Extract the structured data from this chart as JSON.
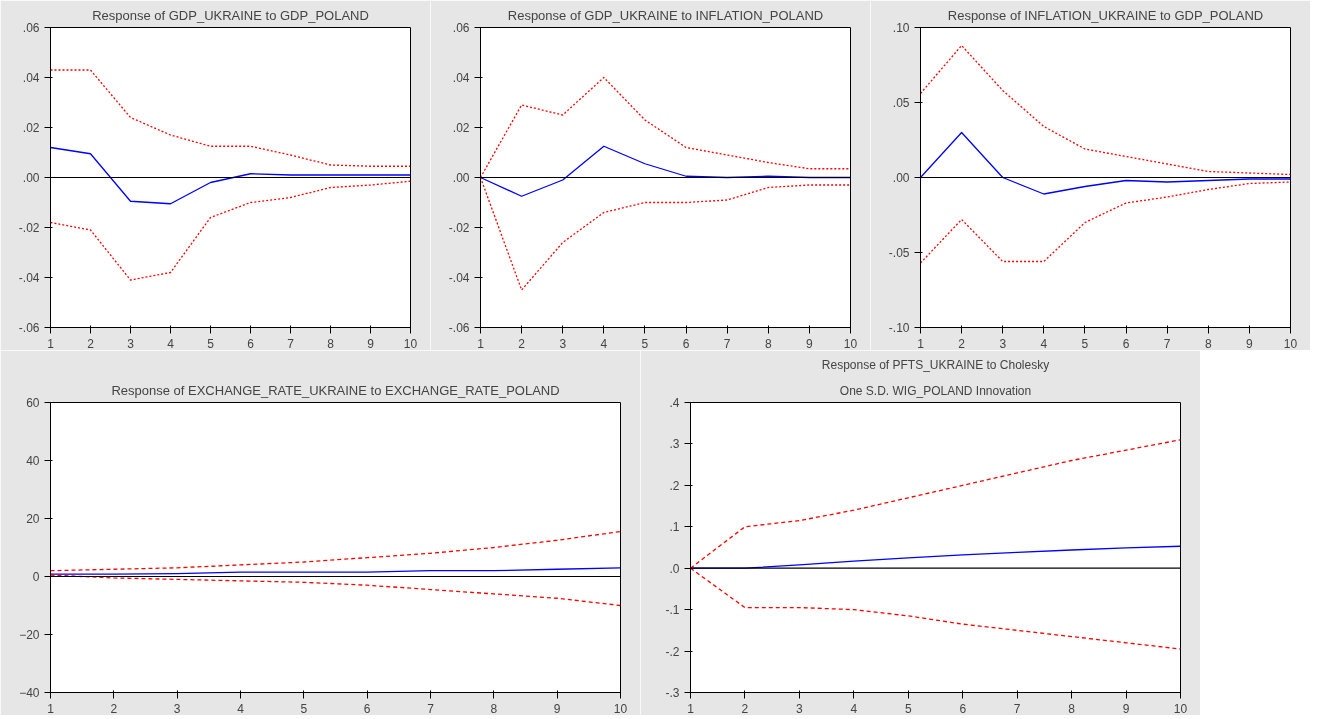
{
  "chart_data": [
    {
      "type": "line",
      "title": "Response of GDP_UKRAINE to GDP_POLAND",
      "x": [
        1,
        2,
        3,
        4,
        5,
        6,
        7,
        8,
        9,
        10
      ],
      "xlim": [
        1,
        10
      ],
      "xticks": [
        1,
        2,
        3,
        4,
        5,
        6,
        7,
        8,
        9,
        10
      ],
      "ylim": [
        -0.06,
        0.06
      ],
      "yticks": [
        {
          "value": -0.06,
          "label": "-.06"
        },
        {
          "value": -0.04,
          "label": "-.04"
        },
        {
          "value": -0.02,
          "label": "-.02"
        },
        {
          "value": 0,
          "label": ".00"
        },
        {
          "value": 0.02,
          "label": ".02"
        },
        {
          "value": 0.04,
          "label": ".04"
        },
        {
          "value": 0.06,
          "label": ".06"
        }
      ],
      "grid": false,
      "ref_lines": [
        {
          "axis": "y",
          "value": 0,
          "color": "#000000"
        }
      ],
      "series": [
        {
          "color": "#0000ff",
          "line_style": "solid",
          "values": [
            0.012,
            0.0095,
            -0.0095,
            -0.0105,
            -0.002,
            0.0015,
            0.001,
            0.001,
            0.001,
            0.001
          ]
        },
        {
          "color": "#ff0000",
          "line_style": "dotted",
          "values": [
            0.043,
            0.043,
            0.024,
            0.017,
            0.0125,
            0.0125,
            0.009,
            0.005,
            0.0045,
            0.0045
          ]
        },
        {
          "color": "#ff0000",
          "line_style": "dotted",
          "values": [
            -0.018,
            -0.021,
            -0.041,
            -0.038,
            -0.016,
            -0.01,
            -0.008,
            -0.004,
            -0.003,
            -0.0015
          ]
        }
      ]
    },
    {
      "type": "line",
      "title": "Response of GDP_UKRAINE to INFLATION_POLAND",
      "x": [
        1,
        2,
        3,
        4,
        5,
        6,
        7,
        8,
        9,
        10
      ],
      "xlim": [
        1,
        10
      ],
      "xticks": [
        1,
        2,
        3,
        4,
        5,
        6,
        7,
        8,
        9,
        10
      ],
      "ylim": [
        -0.06,
        0.06
      ],
      "yticks": [
        {
          "value": -0.06,
          "label": "-.06"
        },
        {
          "value": -0.04,
          "label": "-.04"
        },
        {
          "value": -0.02,
          "label": "-.02"
        },
        {
          "value": 0,
          "label": ".00"
        },
        {
          "value": 0.02,
          "label": ".02"
        },
        {
          "value": 0.04,
          "label": ".04"
        },
        {
          "value": 0.06,
          "label": ".06"
        }
      ],
      "grid": false,
      "ref_lines": [
        {
          "axis": "y",
          "value": 0,
          "color": "#000000"
        }
      ],
      "series": [
        {
          "color": "#0000ff",
          "line_style": "solid",
          "values": [
            0,
            -0.0075,
            -0.001,
            0.0125,
            0.0055,
            0.0005,
            0,
            0.0005,
            0,
            0
          ]
        },
        {
          "color": "#ff0000",
          "line_style": "dotted",
          "values": [
            0,
            0.029,
            0.025,
            0.04,
            0.023,
            0.012,
            0.009,
            0.006,
            0.0035,
            0.0035
          ]
        },
        {
          "color": "#ff0000",
          "line_style": "dotted",
          "values": [
            0,
            -0.045,
            -0.026,
            -0.014,
            -0.01,
            -0.01,
            -0.009,
            -0.004,
            -0.003,
            -0.003
          ]
        }
      ]
    },
    {
      "type": "line",
      "title": "Response of INFLATION_UKRAINE to GDP_POLAND",
      "x": [
        1,
        2,
        3,
        4,
        5,
        6,
        7,
        8,
        9,
        10
      ],
      "xlim": [
        1,
        10
      ],
      "xticks": [
        1,
        2,
        3,
        4,
        5,
        6,
        7,
        8,
        9,
        10
      ],
      "ylim": [
        -0.1,
        0.1
      ],
      "yticks": [
        {
          "value": -0.1,
          "label": "-.10"
        },
        {
          "value": -0.05,
          "label": "-.05"
        },
        {
          "value": 0,
          "label": ".00"
        },
        {
          "value": 0.05,
          "label": ".05"
        },
        {
          "value": 0.1,
          "label": ".10"
        }
      ],
      "grid": false,
      "ref_lines": [
        {
          "axis": "y",
          "value": 0,
          "color": "#000000"
        }
      ],
      "series": [
        {
          "color": "#0000ff",
          "line_style": "solid",
          "values": [
            0,
            0.03,
            0,
            -0.011,
            -0.006,
            -0.002,
            -0.003,
            -0.002,
            -0.001,
            -0.001
          ]
        },
        {
          "color": "#ff0000",
          "line_style": "dotted",
          "values": [
            0.056,
            0.088,
            0.058,
            0.034,
            0.019,
            0.014,
            0.009,
            0.004,
            0.003,
            0.002
          ]
        },
        {
          "color": "#ff0000",
          "line_style": "dotted",
          "values": [
            -0.057,
            -0.028,
            -0.056,
            -0.056,
            -0.03,
            -0.017,
            -0.013,
            -0.008,
            -0.004,
            -0.003
          ]
        }
      ]
    },
    {
      "type": "line",
      "title": "Response of EXCHANGE_RATE_UKRAINE to EXCHANGE_RATE_POLAND",
      "x": [
        1,
        2,
        3,
        4,
        5,
        6,
        7,
        8,
        9,
        10
      ],
      "xlim": [
        1,
        10
      ],
      "xticks": [
        1,
        2,
        3,
        4,
        5,
        6,
        7,
        8,
        9,
        10
      ],
      "ylim": [
        -40,
        60
      ],
      "yticks": [
        -40,
        -20,
        0,
        20,
        40,
        60
      ],
      "grid": false,
      "ref_lines": [
        {
          "axis": "y",
          "value": 0,
          "color": "#000000"
        }
      ],
      "series": [
        {
          "color": "#0000ff",
          "line_style": "solid",
          "values": [
            0.8,
            0.8,
            1,
            1.5,
            1.5,
            1.5,
            2,
            2,
            2.5,
            3
          ]
        },
        {
          "color": "#ff0000",
          "line_style": "dashed",
          "values": [
            2,
            2.5,
            3,
            4,
            5,
            6.5,
            8,
            10,
            12.5,
            15.5
          ]
        },
        {
          "color": "#ff0000",
          "line_style": "dashed",
          "values": [
            0.5,
            -0.5,
            -1,
            -1.5,
            -2,
            -3,
            -4.5,
            -6,
            -7.5,
            -10
          ]
        }
      ]
    },
    {
      "type": "line",
      "title": "Response of PFTS_UKRAINE to Cholesky",
      "subtitle": "One S.D. WIG_POLAND Innovation",
      "x": [
        1,
        2,
        3,
        4,
        5,
        6,
        7,
        8,
        9,
        10
      ],
      "xlim": [
        1,
        10
      ],
      "xticks": [
        1,
        2,
        3,
        4,
        5,
        6,
        7,
        8,
        9,
        10
      ],
      "ylim": [
        -0.3,
        0.4
      ],
      "yticks": [
        {
          "value": -0.3,
          "label": "-.3"
        },
        {
          "value": -0.2,
          "label": "-.2"
        },
        {
          "value": -0.1,
          "label": "-.1"
        },
        {
          "value": 0,
          "label": ".0"
        },
        {
          "value": 0.1,
          "label": ".1"
        },
        {
          "value": 0.2,
          "label": ".2"
        },
        {
          "value": 0.3,
          "label": ".3"
        },
        {
          "value": 0.4,
          "label": ".4"
        }
      ],
      "grid": false,
      "ref_lines": [
        {
          "axis": "y",
          "value": 0,
          "color": "#000000"
        }
      ],
      "series": [
        {
          "color": "#0000ff",
          "line_style": "solid",
          "values": [
            0,
            0,
            0.008,
            0.017,
            0.025,
            0.032,
            0.038,
            0.044,
            0.049,
            0.053
          ]
        },
        {
          "color": "#ff0000",
          "line_style": "dashed",
          "values": [
            0,
            0.1,
            0.115,
            0.14,
            0.17,
            0.2,
            0.23,
            0.26,
            0.285,
            0.31
          ]
        },
        {
          "color": "#ff0000",
          "line_style": "dashed",
          "values": [
            0,
            -0.095,
            -0.095,
            -0.1,
            -0.115,
            -0.135,
            -0.15,
            -0.165,
            -0.18,
            -0.195
          ]
        }
      ]
    }
  ]
}
